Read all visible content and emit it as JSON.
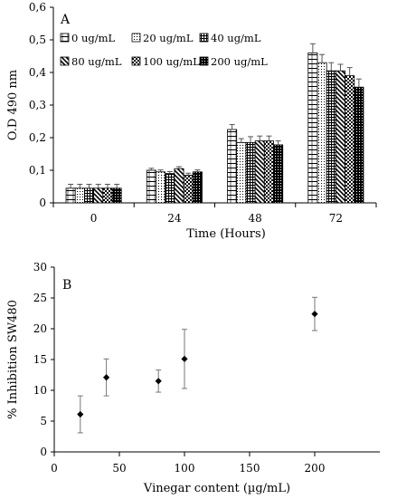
{
  "chart_data": [
    {
      "type": "bar",
      "panel_label": "A",
      "categories": [
        "0",
        "24",
        "48",
        "72"
      ],
      "xlabel": "Time (Hours)",
      "ylabel": "O.D 490 nm",
      "ylim": [
        0,
        0.6
      ],
      "yticks": [
        "0",
        "0,1",
        "0,2",
        "0,3",
        "0,4",
        "0,5",
        "0,6"
      ],
      "legend_position": "top-left",
      "series": [
        {
          "name": "0 ug/mL",
          "pattern": "hbrick",
          "values": [
            0.045,
            0.1,
            0.225,
            0.46
          ],
          "errors": [
            0.012,
            0.006,
            0.015,
            0.028
          ]
        },
        {
          "name": "20 ug/mL",
          "pattern": "dots",
          "values": [
            0.045,
            0.095,
            0.185,
            0.43
          ],
          "errors": [
            0.012,
            0.006,
            0.012,
            0.025
          ]
        },
        {
          "name": "40 ug/mL",
          "pattern": "grid",
          "values": [
            0.045,
            0.09,
            0.185,
            0.405
          ],
          "errors": [
            0.012,
            0.006,
            0.018,
            0.025
          ]
        },
        {
          "name": "80 ug/mL",
          "pattern": "diag",
          "values": [
            0.045,
            0.105,
            0.19,
            0.405
          ],
          "errors": [
            0.012,
            0.006,
            0.015,
            0.02
          ]
        },
        {
          "name": "100 ug/mL",
          "pattern": "checker",
          "values": [
            0.045,
            0.085,
            0.19,
            0.39
          ],
          "errors": [
            0.012,
            0.006,
            0.015,
            0.025
          ]
        },
        {
          "name": "200 ug/mL",
          "pattern": "dense",
          "values": [
            0.045,
            0.095,
            0.178,
            0.355
          ],
          "errors": [
            0.012,
            0.006,
            0.012,
            0.025
          ]
        }
      ]
    },
    {
      "type": "scatter",
      "panel_label": "B",
      "xlabel": "Vinegar content (µg/mL)",
      "ylabel": "% Inhibition SW480",
      "xlim": [
        0,
        250
      ],
      "ylim": [
        0,
        30
      ],
      "xticks": [
        0,
        50,
        100,
        150,
        200
      ],
      "yticks": [
        0,
        5,
        10,
        15,
        20,
        25,
        30
      ],
      "series": [
        {
          "points": [
            {
              "x": 20,
              "y": 6.1,
              "err": 3.0
            },
            {
              "x": 40,
              "y": 12.1,
              "err": 3.0
            },
            {
              "x": 80,
              "y": 11.5,
              "err": 1.8
            },
            {
              "x": 100,
              "y": 15.1,
              "err": 4.8
            },
            {
              "x": 200,
              "y": 22.4,
              "err": 2.7
            }
          ]
        }
      ]
    }
  ]
}
